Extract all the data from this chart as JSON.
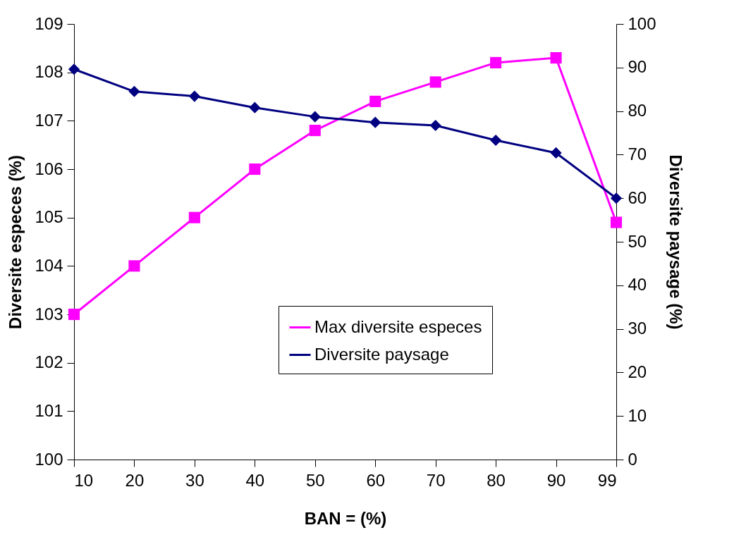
{
  "chart_data": {
    "type": "line",
    "xlabel": "BAN = (%)",
    "ylabel": "Diversite especes (%)",
    "y2label": "Diversite paysage (%)",
    "categories": [
      "10",
      "20",
      "30",
      "40",
      "50",
      "60",
      "70",
      "80",
      "90",
      "99"
    ],
    "series": [
      {
        "name": "Max diversite especes",
        "color": "#ff00ff",
        "marker": "square",
        "values": [
          103.0,
          104.0,
          105.0,
          106.0,
          106.8,
          107.4,
          107.8,
          108.2,
          108.3,
          104.9
        ]
      },
      {
        "name": "Diversite paysage",
        "color": "#000080",
        "marker": "diamond",
        "axis": "y2",
        "values": [
          89.6,
          84.5,
          83.4,
          80.8,
          78.7,
          77.4,
          76.7,
          73.3,
          70.4,
          60.0
        ]
      }
    ],
    "ylim": [
      100,
      109
    ],
    "yticks": [
      100,
      101,
      102,
      103,
      104,
      105,
      106,
      107,
      108,
      109
    ],
    "y2lim": [
      0,
      100
    ],
    "y2ticks": [
      0,
      10,
      20,
      30,
      40,
      50,
      60,
      70,
      80,
      90,
      100
    ],
    "legend": "bottom",
    "grid": false
  }
}
